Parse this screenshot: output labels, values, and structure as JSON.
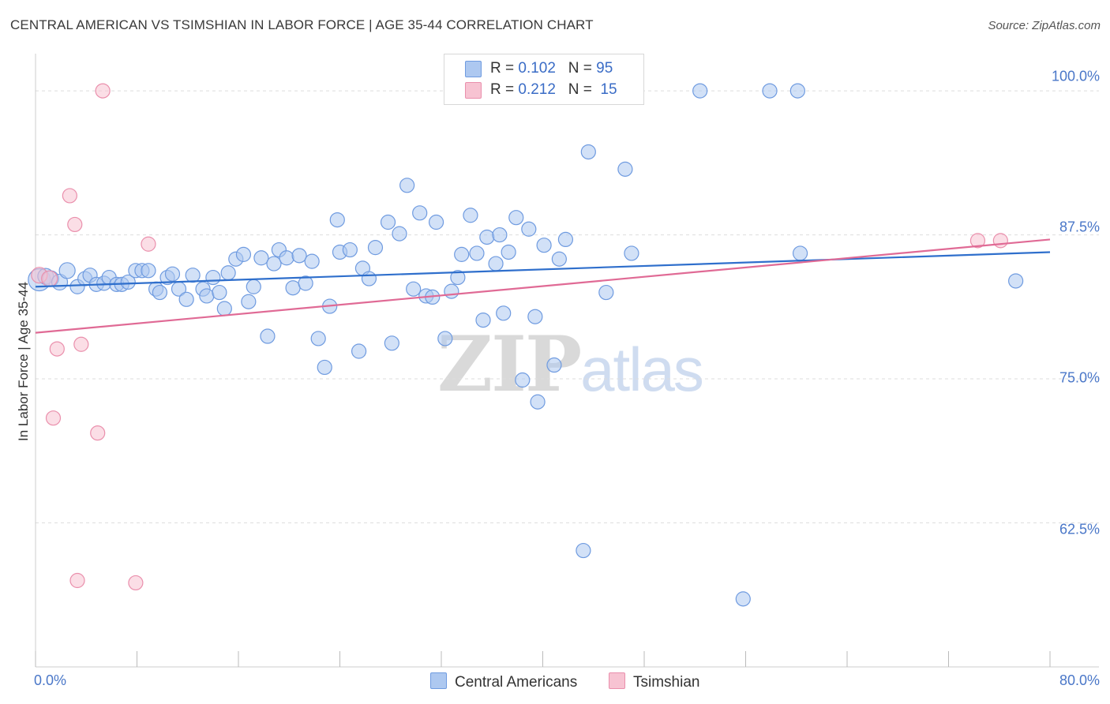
{
  "header": {
    "title": "CENTRAL AMERICAN VS TSIMSHIAN IN LABOR FORCE | AGE 35-44 CORRELATION CHART",
    "source": "Source: ZipAtlas.com"
  },
  "watermark": {
    "zip": "ZIP",
    "atlas": "atlas"
  },
  "legend": {
    "r_label": "R =",
    "n_label": "N =",
    "rows": [
      {
        "r": "0.102",
        "n": "95",
        "color": "#adc8f0"
      },
      {
        "r": "0.212",
        "n": "15",
        "color": "#f7b8cb"
      }
    ]
  },
  "bottom_legend": [
    {
      "label": "Central Americans",
      "color": "#adc8f0"
    },
    {
      "label": "Tsimshian",
      "color": "#f7b8cb"
    }
  ],
  "colors": {
    "blue_fill": "#adc8f0",
    "blue_stroke": "#6f9be0",
    "blue_line": "#2f6fcc",
    "pink_fill": "#f7c3d2",
    "pink_stroke": "#ea8fac",
    "pink_line": "#e06a95",
    "tick_color": "#4a77c8",
    "grid": "#dddddd"
  },
  "chart_data": {
    "type": "scatter",
    "title": "CENTRAL AMERICAN VS TSIMSHIAN IN LABOR FORCE | AGE 35-44 CORRELATION CHART",
    "xlabel": "",
    "ylabel": "In Labor Force | Age 35-44",
    "xlim": [
      0,
      80
    ],
    "ylim": [
      50,
      103.5
    ],
    "x_tick_labels": [
      "0.0%",
      "80.0%"
    ],
    "y_ticks": [
      {
        "value": 100,
        "label": "100.0%"
      },
      {
        "value": 87.5,
        "label": "87.5%"
      },
      {
        "value": 75,
        "label": "75.0%"
      },
      {
        "value": 62.5,
        "label": "62.5%"
      }
    ],
    "series": [
      {
        "name": "Central Americans",
        "r": 0.102,
        "n": 95,
        "trendline": {
          "x": [
            0,
            80
          ],
          "y": [
            83.0,
            86.0
          ]
        },
        "points": [
          [
            0.3,
            83.6,
            14
          ],
          [
            0.8,
            83.9,
            10
          ],
          [
            1.2,
            83.7,
            10
          ],
          [
            1.9,
            83.4,
            10
          ],
          [
            2.5,
            84.4,
            10
          ],
          [
            3.3,
            83.0,
            9
          ],
          [
            3.9,
            83.7,
            9
          ],
          [
            4.3,
            84.0,
            9
          ],
          [
            4.8,
            83.2,
            9
          ],
          [
            5.4,
            83.3,
            9
          ],
          [
            5.8,
            83.8,
            9
          ],
          [
            6.4,
            83.2,
            9
          ],
          [
            6.8,
            83.2,
            9
          ],
          [
            7.3,
            83.4,
            9
          ],
          [
            7.9,
            84.4,
            9
          ],
          [
            8.4,
            84.4,
            9
          ],
          [
            8.9,
            84.4,
            9
          ],
          [
            9.5,
            82.8,
            9
          ],
          [
            9.8,
            82.5,
            9
          ],
          [
            10.4,
            83.8,
            9
          ],
          [
            10.8,
            84.1,
            9
          ],
          [
            11.3,
            82.8,
            9
          ],
          [
            11.9,
            81.9,
            9
          ],
          [
            12.4,
            84.0,
            9
          ],
          [
            13.2,
            82.8,
            9
          ],
          [
            13.5,
            82.2,
            9
          ],
          [
            14.0,
            83.8,
            9
          ],
          [
            14.5,
            82.5,
            9
          ],
          [
            14.9,
            81.1,
            9
          ],
          [
            15.2,
            84.2,
            9
          ],
          [
            15.8,
            85.4,
            9
          ],
          [
            16.4,
            85.8,
            9
          ],
          [
            16.8,
            81.7,
            9
          ],
          [
            17.2,
            83.0,
            9
          ],
          [
            17.8,
            85.5,
            9
          ],
          [
            18.3,
            78.7,
            9
          ],
          [
            18.8,
            85.0,
            9
          ],
          [
            19.2,
            86.2,
            9
          ],
          [
            19.8,
            85.5,
            9
          ],
          [
            20.3,
            82.9,
            9
          ],
          [
            20.8,
            85.7,
            9
          ],
          [
            21.3,
            83.3,
            9
          ],
          [
            21.8,
            85.2,
            9
          ],
          [
            22.3,
            78.5,
            9
          ],
          [
            22.8,
            76.0,
            9
          ],
          [
            23.2,
            81.3,
            9
          ],
          [
            23.8,
            88.8,
            9
          ],
          [
            24.0,
            86.0,
            9
          ],
          [
            24.8,
            86.2,
            9
          ],
          [
            25.5,
            77.4,
            9
          ],
          [
            25.8,
            84.6,
            9
          ],
          [
            26.3,
            83.7,
            9
          ],
          [
            26.8,
            86.4,
            9
          ],
          [
            27.8,
            88.6,
            9
          ],
          [
            28.1,
            78.1,
            9
          ],
          [
            28.7,
            87.6,
            9
          ],
          [
            29.3,
            91.8,
            9
          ],
          [
            29.8,
            82.8,
            9
          ],
          [
            30.3,
            89.4,
            9
          ],
          [
            30.8,
            82.2,
            9
          ],
          [
            31.3,
            82.1,
            9
          ],
          [
            31.6,
            88.6,
            9
          ],
          [
            32.3,
            78.5,
            9
          ],
          [
            32.8,
            82.6,
            9
          ],
          [
            33.3,
            83.8,
            9
          ],
          [
            33.6,
            85.8,
            9
          ],
          [
            34.3,
            89.2,
            9
          ],
          [
            34.8,
            85.9,
            9
          ],
          [
            35.3,
            80.1,
            9
          ],
          [
            35.6,
            87.3,
            9
          ],
          [
            36.3,
            85.0,
            9
          ],
          [
            36.6,
            87.5,
            9
          ],
          [
            36.9,
            80.7,
            9
          ],
          [
            37.3,
            86.0,
            9
          ],
          [
            37.9,
            89.0,
            9
          ],
          [
            38.4,
            74.9,
            9
          ],
          [
            38.9,
            88.0,
            9
          ],
          [
            39.4,
            80.4,
            9
          ],
          [
            39.6,
            73.0,
            9
          ],
          [
            40.1,
            86.6,
            9
          ],
          [
            40.9,
            76.2,
            9
          ],
          [
            41.3,
            85.4,
            9
          ],
          [
            41.8,
            87.1,
            9
          ],
          [
            43.2,
            60.1,
            9
          ],
          [
            43.6,
            94.7,
            9
          ],
          [
            45.0,
            82.5,
            9
          ],
          [
            46.5,
            93.2,
            9
          ],
          [
            47.0,
            85.9,
            9
          ],
          [
            52.4,
            100.0,
            9
          ],
          [
            57.9,
            100.0,
            9
          ],
          [
            60.1,
            100.0,
            9
          ],
          [
            55.8,
            55.9,
            9
          ],
          [
            60.3,
            85.9,
            9
          ],
          [
            77.3,
            83.5,
            9
          ]
        ]
      },
      {
        "name": "Tsimshian",
        "r": 0.212,
        "n": 15,
        "trendline": {
          "x": [
            0,
            80
          ],
          "y": [
            79.0,
            87.1
          ]
        },
        "points": [
          [
            0.3,
            84.0,
            10
          ],
          [
            1.1,
            83.7,
            10
          ],
          [
            1.4,
            71.6,
            9
          ],
          [
            1.7,
            77.6,
            9
          ],
          [
            2.7,
            90.9,
            9
          ],
          [
            3.1,
            88.4,
            9
          ],
          [
            3.3,
            57.5,
            9
          ],
          [
            3.6,
            78.0,
            9
          ],
          [
            4.9,
            70.3,
            9
          ],
          [
            5.3,
            100.0,
            9
          ],
          [
            7.9,
            57.3,
            9
          ],
          [
            8.9,
            86.7,
            9
          ],
          [
            74.3,
            87.0,
            9
          ],
          [
            76.1,
            87.0,
            9
          ]
        ]
      }
    ]
  }
}
